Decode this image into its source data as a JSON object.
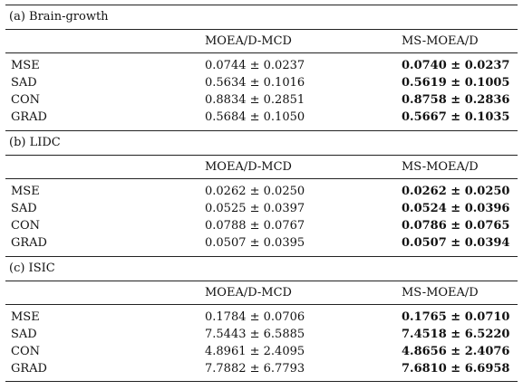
{
  "columns": [
    "MOEA/D-MCD",
    "MS-MOEA/D"
  ],
  "sections": [
    {
      "title": "(a) Brain-growth",
      "rows": [
        {
          "metric": "MSE",
          "mcd": "0.0744 ± 0.0237",
          "ms": "0.0740 ± 0.0237"
        },
        {
          "metric": "SAD",
          "mcd": "0.5634 ± 0.1016",
          "ms": "0.5619 ± 0.1005"
        },
        {
          "metric": "CON",
          "mcd": "0.8834 ± 0.2851",
          "ms": "0.8758 ± 0.2836"
        },
        {
          "metric": "GRAD",
          "mcd": "0.5684 ± 0.1050",
          "ms": "0.5667 ± 0.1035"
        }
      ]
    },
    {
      "title": "(b) LIDC",
      "rows": [
        {
          "metric": "MSE",
          "mcd": "0.0262 ± 0.0250",
          "ms": "0.0262 ± 0.0250"
        },
        {
          "metric": "SAD",
          "mcd": "0.0525 ± 0.0397",
          "ms": "0.0524 ± 0.0396"
        },
        {
          "metric": "CON",
          "mcd": "0.0788 ± 0.0767",
          "ms": "0.0786 ± 0.0765"
        },
        {
          "metric": "GRAD",
          "mcd": "0.0507 ± 0.0395",
          "ms": "0.0507 ± 0.0394"
        }
      ]
    },
    {
      "title": "(c) ISIC",
      "rows": [
        {
          "metric": "MSE",
          "mcd": "0.1784 ± 0.0706",
          "ms": "0.1765 ± 0.0710"
        },
        {
          "metric": "SAD",
          "mcd": "7.5443 ± 6.5885",
          "ms": "7.4518 ± 6.5220"
        },
        {
          "metric": "CON",
          "mcd": "4.8961 ± 2.4095",
          "ms": "4.8656 ± 2.4076"
        },
        {
          "metric": "GRAD",
          "mcd": "7.7882 ± 6.7793",
          "ms": "7.6810 ± 6.6958"
        }
      ]
    }
  ]
}
